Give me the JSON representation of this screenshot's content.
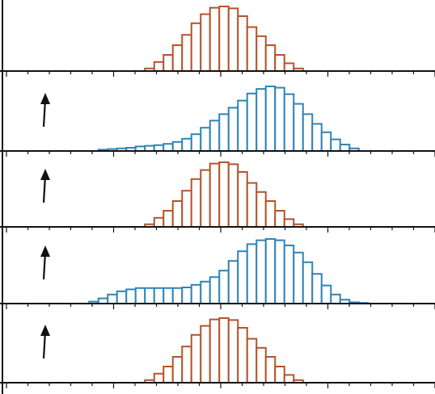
{
  "chart_data": [
    {
      "type": "bar",
      "color": "#b5532a",
      "arrow": false,
      "x": [
        -8,
        -7,
        -6,
        -5,
        -4,
        -3,
        -2,
        -1,
        0,
        1,
        2,
        3,
        4,
        5,
        6,
        7,
        8
      ],
      "values": [
        0.04,
        0.14,
        0.25,
        0.4,
        0.56,
        0.74,
        0.88,
        0.98,
        1.0,
        0.97,
        0.85,
        0.68,
        0.54,
        0.4,
        0.25,
        0.12,
        0.04
      ]
    },
    {
      "type": "bar",
      "color": "#2f84b5",
      "arrow": true,
      "x": [
        -13,
        -12,
        -11,
        -10,
        -9,
        -8,
        -7,
        -6,
        -5,
        -4,
        -3,
        -2,
        -1,
        0,
        1,
        2,
        3,
        4,
        5,
        6,
        7,
        8,
        9,
        10,
        11,
        12,
        13,
        14
      ],
      "values": [
        0.02,
        0.03,
        0.04,
        0.05,
        0.07,
        0.08,
        0.09,
        0.11,
        0.14,
        0.19,
        0.26,
        0.36,
        0.47,
        0.57,
        0.67,
        0.78,
        0.89,
        0.96,
        1.0,
        0.98,
        0.88,
        0.73,
        0.57,
        0.42,
        0.29,
        0.18,
        0.1,
        0.04
      ]
    },
    {
      "type": "bar",
      "color": "#b5532a",
      "arrow": true,
      "x": [
        -8,
        -7,
        -6,
        -5,
        -4,
        -3,
        -2,
        -1,
        0,
        1,
        2,
        3,
        4,
        5,
        6,
        7,
        8
      ],
      "values": [
        0.04,
        0.14,
        0.25,
        0.4,
        0.56,
        0.74,
        0.88,
        0.98,
        1.0,
        0.97,
        0.85,
        0.68,
        0.54,
        0.4,
        0.25,
        0.12,
        0.04
      ]
    },
    {
      "type": "bar",
      "color": "#2f84b5",
      "arrow": true,
      "x": [
        -14,
        -13,
        -12,
        -11,
        -10,
        -9,
        -8,
        -7,
        -6,
        -5,
        -4,
        -3,
        -2,
        -1,
        0,
        1,
        2,
        3,
        4,
        5,
        6,
        7,
        8,
        9,
        10,
        11,
        12,
        13,
        14,
        15
      ],
      "values": [
        0.03,
        0.08,
        0.14,
        0.19,
        0.22,
        0.24,
        0.24,
        0.24,
        0.24,
        0.24,
        0.25,
        0.29,
        0.34,
        0.41,
        0.51,
        0.66,
        0.81,
        0.92,
        0.98,
        1.0,
        0.98,
        0.9,
        0.79,
        0.64,
        0.46,
        0.28,
        0.14,
        0.06,
        0.02,
        0.01
      ]
    },
    {
      "type": "bar",
      "color": "#b5532a",
      "arrow": true,
      "x": [
        -8,
        -7,
        -6,
        -5,
        -4,
        -3,
        -2,
        -1,
        0,
        1,
        2,
        3,
        4,
        5,
        6,
        7,
        8
      ],
      "values": [
        0.04,
        0.14,
        0.25,
        0.4,
        0.56,
        0.74,
        0.88,
        0.98,
        1.0,
        0.97,
        0.85,
        0.68,
        0.54,
        0.4,
        0.25,
        0.12,
        0.04
      ]
    }
  ]
}
